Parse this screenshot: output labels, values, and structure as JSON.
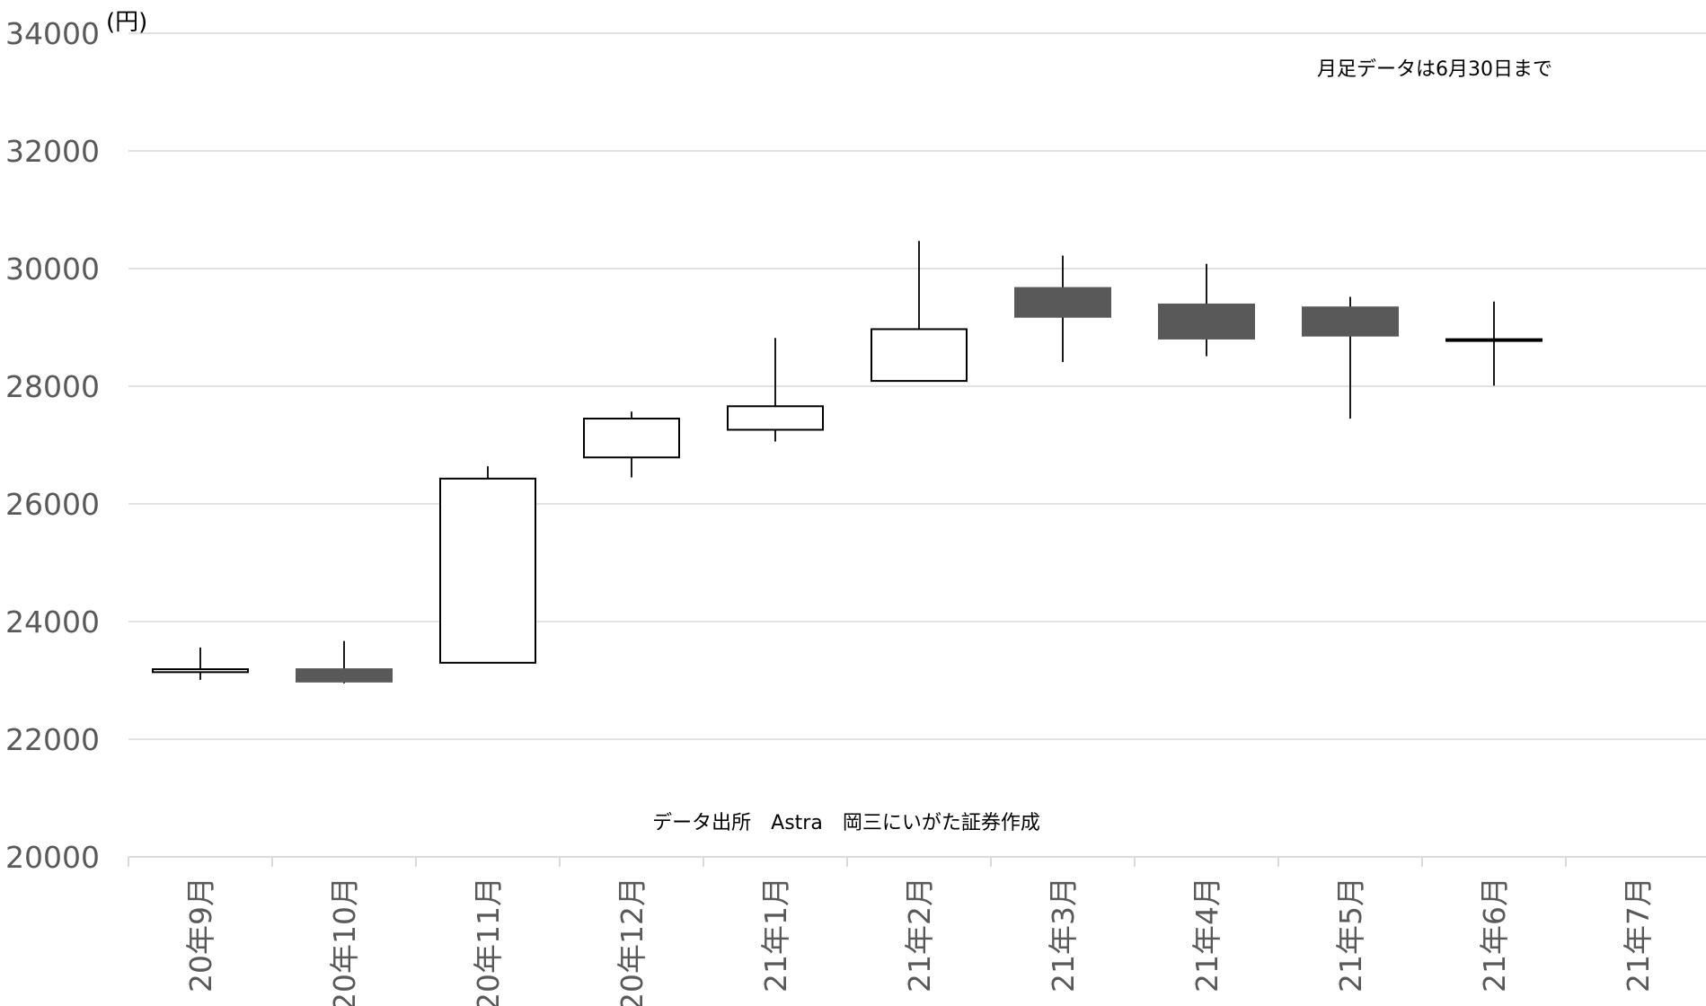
{
  "chart_data": {
    "type": "candlestick",
    "unit_label": "(円)",
    "annotation_top": "月足データは6月30日まで",
    "annotation_source": "データ出所　Astra　岡三にいがた証券作成",
    "ylim": [
      20000,
      34000
    ],
    "yticks": [
      "20000",
      "22000",
      "24000",
      "26000",
      "28000",
      "30000",
      "32000",
      "34000"
    ],
    "categories": [
      "20年9月",
      "20年10月",
      "20年11月",
      "20年12月",
      "21年1月",
      "21年2月",
      "21年3月",
      "21年4月",
      "21年5月",
      "21年6月",
      "21年7月"
    ],
    "candles": [
      {
        "open": 23140,
        "high": 23560,
        "low": 23010,
        "close": 23190
      },
      {
        "open": 23190,
        "high": 23670,
        "low": 22950,
        "close": 22980
      },
      {
        "open": 23300,
        "high": 26640,
        "low": 23300,
        "close": 26430
      },
      {
        "open": 26790,
        "high": 27570,
        "low": 26450,
        "close": 27450
      },
      {
        "open": 27260,
        "high": 28820,
        "low": 27060,
        "close": 27660
      },
      {
        "open": 28090,
        "high": 30470,
        "low": 28090,
        "close": 28970
      },
      {
        "open": 29670,
        "high": 30220,
        "low": 28410,
        "close": 29180
      },
      {
        "open": 29390,
        "high": 30080,
        "low": 28510,
        "close": 28810
      },
      {
        "open": 29340,
        "high": 29520,
        "low": 27450,
        "close": 28860
      },
      {
        "open": 28800,
        "high": 29440,
        "low": 28010,
        "close": 28800
      },
      null
    ],
    "colors": {
      "up": "#ffffff",
      "down": "#595959",
      "outline": "#000000",
      "wick": "#000000",
      "grid": "#d9d9d9"
    },
    "grid": true
  }
}
